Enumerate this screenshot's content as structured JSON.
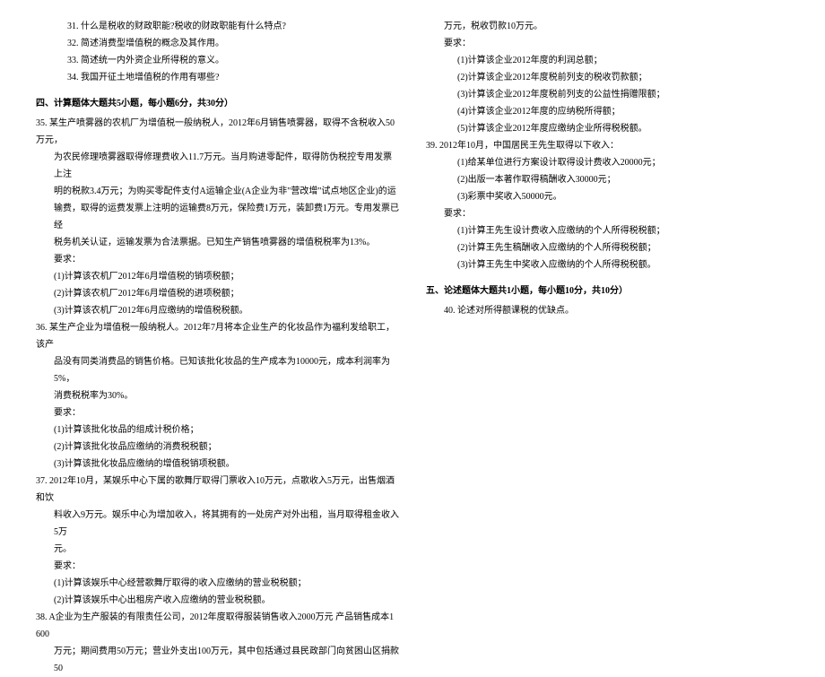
{
  "left": {
    "q31": "31. 什么是税收的财政职能?税收的财政职能有什么特点?",
    "q32": "32. 简述消费型增值税的概念及其作用。",
    "q33": "33. 简述统一内外资企业所得税的意义。",
    "q34": "34. 我国开征土地增值税的作用有哪些?",
    "section4": "四、计算题体大题共5小题，每小题6分，共30分）",
    "q35_1": "35. 某生产喷雾器的农机厂为增值税一般纳税人，2012年6月销售喷雾器，取得不含税收入50万元，",
    "q35_2": "为农民修理喷雾器取得修理费收入11.7万元。当月购进零配件，取得防伪税控专用发票上注",
    "q35_3": "明的税款3.4万元；为购买零配件支付A运输企业(A企业为非\"营改增\"试点地区企业)的运",
    "q35_4": "输费，取得的运费发票上注明的运输费8万元，保险费1万元，装卸费1万元。专用发票已经",
    "q35_5": "税务机关认证，运输发票为合法票据。已知生产销售喷雾器的增值税税率为13%。",
    "q35_req": "要求：",
    "q35_r1": "(1)计算该农机厂2012年6月增值税的销项税额；",
    "q35_r2": "(2)计算该农机厂2012年6月增值税的进项税额；",
    "q35_r3": "(3)计算该农机厂2012年6月应缴纳的增值税税额。",
    "q36_1": "36. 某生产企业为增值税一般纳税人。2012年7月将本企业生产的化妆品作为福利发给职工，该产",
    "q36_2": "品没有同类消费品的销售价格。已知该批化妆品的生产成本为10000元，成本利润率为5%，",
    "q36_3": "消费税税率为30%。",
    "q36_req": "要求：",
    "q36_r1": "(1)计算该批化妆品的组成计税价格；",
    "q36_r2": "(2)计算该批化妆品应缴纳的消费税税额；",
    "q36_r3": "(3)计算该批化妆品应缴纳的增值税销项税额。",
    "q37_1": "37. 2012年10月，某娱乐中心下属的歌舞厅取得门票收入10万元，点歌收入5万元，出售烟酒和饮",
    "q37_2": "料收入9万元。娱乐中心为增加收入，将其拥有的一处房产对外出租，当月取得租金收入5万",
    "q37_3": "元。",
    "q37_req": "要求：",
    "q37_r1": "(1)计算该娱乐中心经营歌舞厅取得的收入应缴纳的营业税税额；",
    "q37_r2": "(2)计算该娱乐中心出租房产收入应缴纳的营业税税额。",
    "q38_1": "38. A企业为生产服装的有限责任公司，2012年度取得服装销售收入2000万元 产品销售成本1 600",
    "q38_2": "万元；期间费用50万元；营业外支出100万元，其中包括通过县民政部门向贫困山区捐款50"
  },
  "right": {
    "q38_3": "万元，税收罚款10万元。",
    "q38_req": "要求：",
    "q38_r1": "(1)计算该企业2012年度的利润总额；",
    "q38_r2": "(2)计算该企业2012年度税前列支的税收罚款额；",
    "q38_r3": "(3)计算该企业2012年度税前列支的公益性捐赠限额；",
    "q38_r4": "(4)计算该企业2012年度的应纳税所得额；",
    "q38_r5": "(5)计算该企业2012年度应缴纳企业所得税税额。",
    "q39_1": "39. 2012年10月，中国居民王先生取得以下收入：",
    "q39_r1": "(1)给某单位进行方案设计取得设计费收入20000元；",
    "q39_r2": "(2)出版一本著作取得稿酬收入30000元；",
    "q39_r3": "(3)彩票中奖收入50000元。",
    "q39_req": "要求：",
    "q39_a1": "(1)计算王先生设计费收入应缴纳的个人所得税税额；",
    "q39_a2": "(2)计算王先生稿酬收入应缴纳的个人所得税税额；",
    "q39_a3": "(3)计算王先生中奖收入应缴纳的个人所得税税额。",
    "section5": "五、论述题体大题共1小题，每小题10分，共10分）",
    "q40": "40. 论述对所得额课税的优缺点。"
  }
}
